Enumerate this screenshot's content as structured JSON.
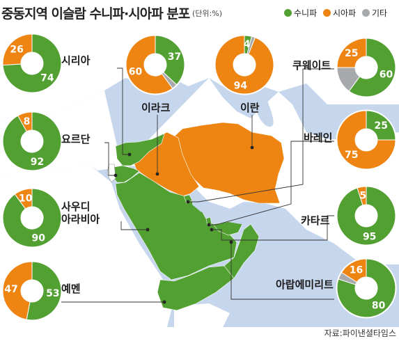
{
  "title": "중동지역 이슬람 수니파·시아파 분포",
  "unit": "(단위:%)",
  "source": "자료:파이낸셜타임스",
  "colors": {
    "sunni": "#52a032",
    "shia": "#ee8412",
    "other": "#a7a9ac",
    "land": "#ffffff",
    "sea": "#c6d6ec"
  },
  "chart_data": {
    "type": "pie",
    "legend": [
      {
        "key": "sunni",
        "label": "수니파"
      },
      {
        "key": "shia",
        "label": "시아파"
      },
      {
        "key": "other",
        "label": "기타"
      }
    ],
    "countries": [
      {
        "id": "syria",
        "name": "시리아",
        "sunni": 74,
        "shia": 26,
        "other": 0
      },
      {
        "id": "jordan",
        "name": "요르단",
        "sunni": 92,
        "shia": 8,
        "other": 0
      },
      {
        "id": "saudi",
        "name": "사우디\n아라비아",
        "sunni": 90,
        "shia": 10,
        "other": 0
      },
      {
        "id": "yemen",
        "name": "예멘",
        "sunni": 53,
        "shia": 47,
        "other": 0
      },
      {
        "id": "iraq",
        "name": "이라크",
        "sunni": 37,
        "shia": 60,
        "other": 3
      },
      {
        "id": "iran",
        "name": "이란",
        "sunni": 4,
        "shia": 94,
        "other": 2
      },
      {
        "id": "kuwait",
        "name": "쿠웨이트",
        "sunni": 60,
        "shia": 25,
        "other": 15
      },
      {
        "id": "bahrain",
        "name": "바레인",
        "sunni": 25,
        "shia": 75,
        "other": 0
      },
      {
        "id": "qatar",
        "name": "카타르",
        "sunni": 95,
        "shia": 5,
        "other": 0
      },
      {
        "id": "uae",
        "name": "아랍에미리트",
        "sunni": 80,
        "shia": 16,
        "other": 4
      }
    ]
  }
}
